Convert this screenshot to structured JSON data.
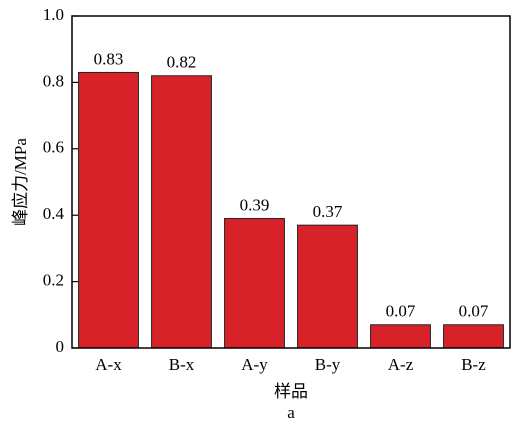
{
  "chart_data": {
    "type": "bar",
    "caption": "a",
    "x_label": "样品",
    "y_label": "峰应力/MPa",
    "categories": [
      "A-x",
      "B-x",
      "A-y",
      "B-y",
      "A-z",
      "B-z"
    ],
    "values": [
      0.83,
      0.82,
      0.39,
      0.37,
      0.07,
      0.07
    ],
    "color": "#d7222a",
    "ylim": [
      0,
      1.0
    ],
    "yticks": [
      0,
      0.2,
      0.4,
      0.6,
      0.8,
      {
        "value": 1.0,
        "label": "1.0"
      }
    ],
    "grid": false
  }
}
